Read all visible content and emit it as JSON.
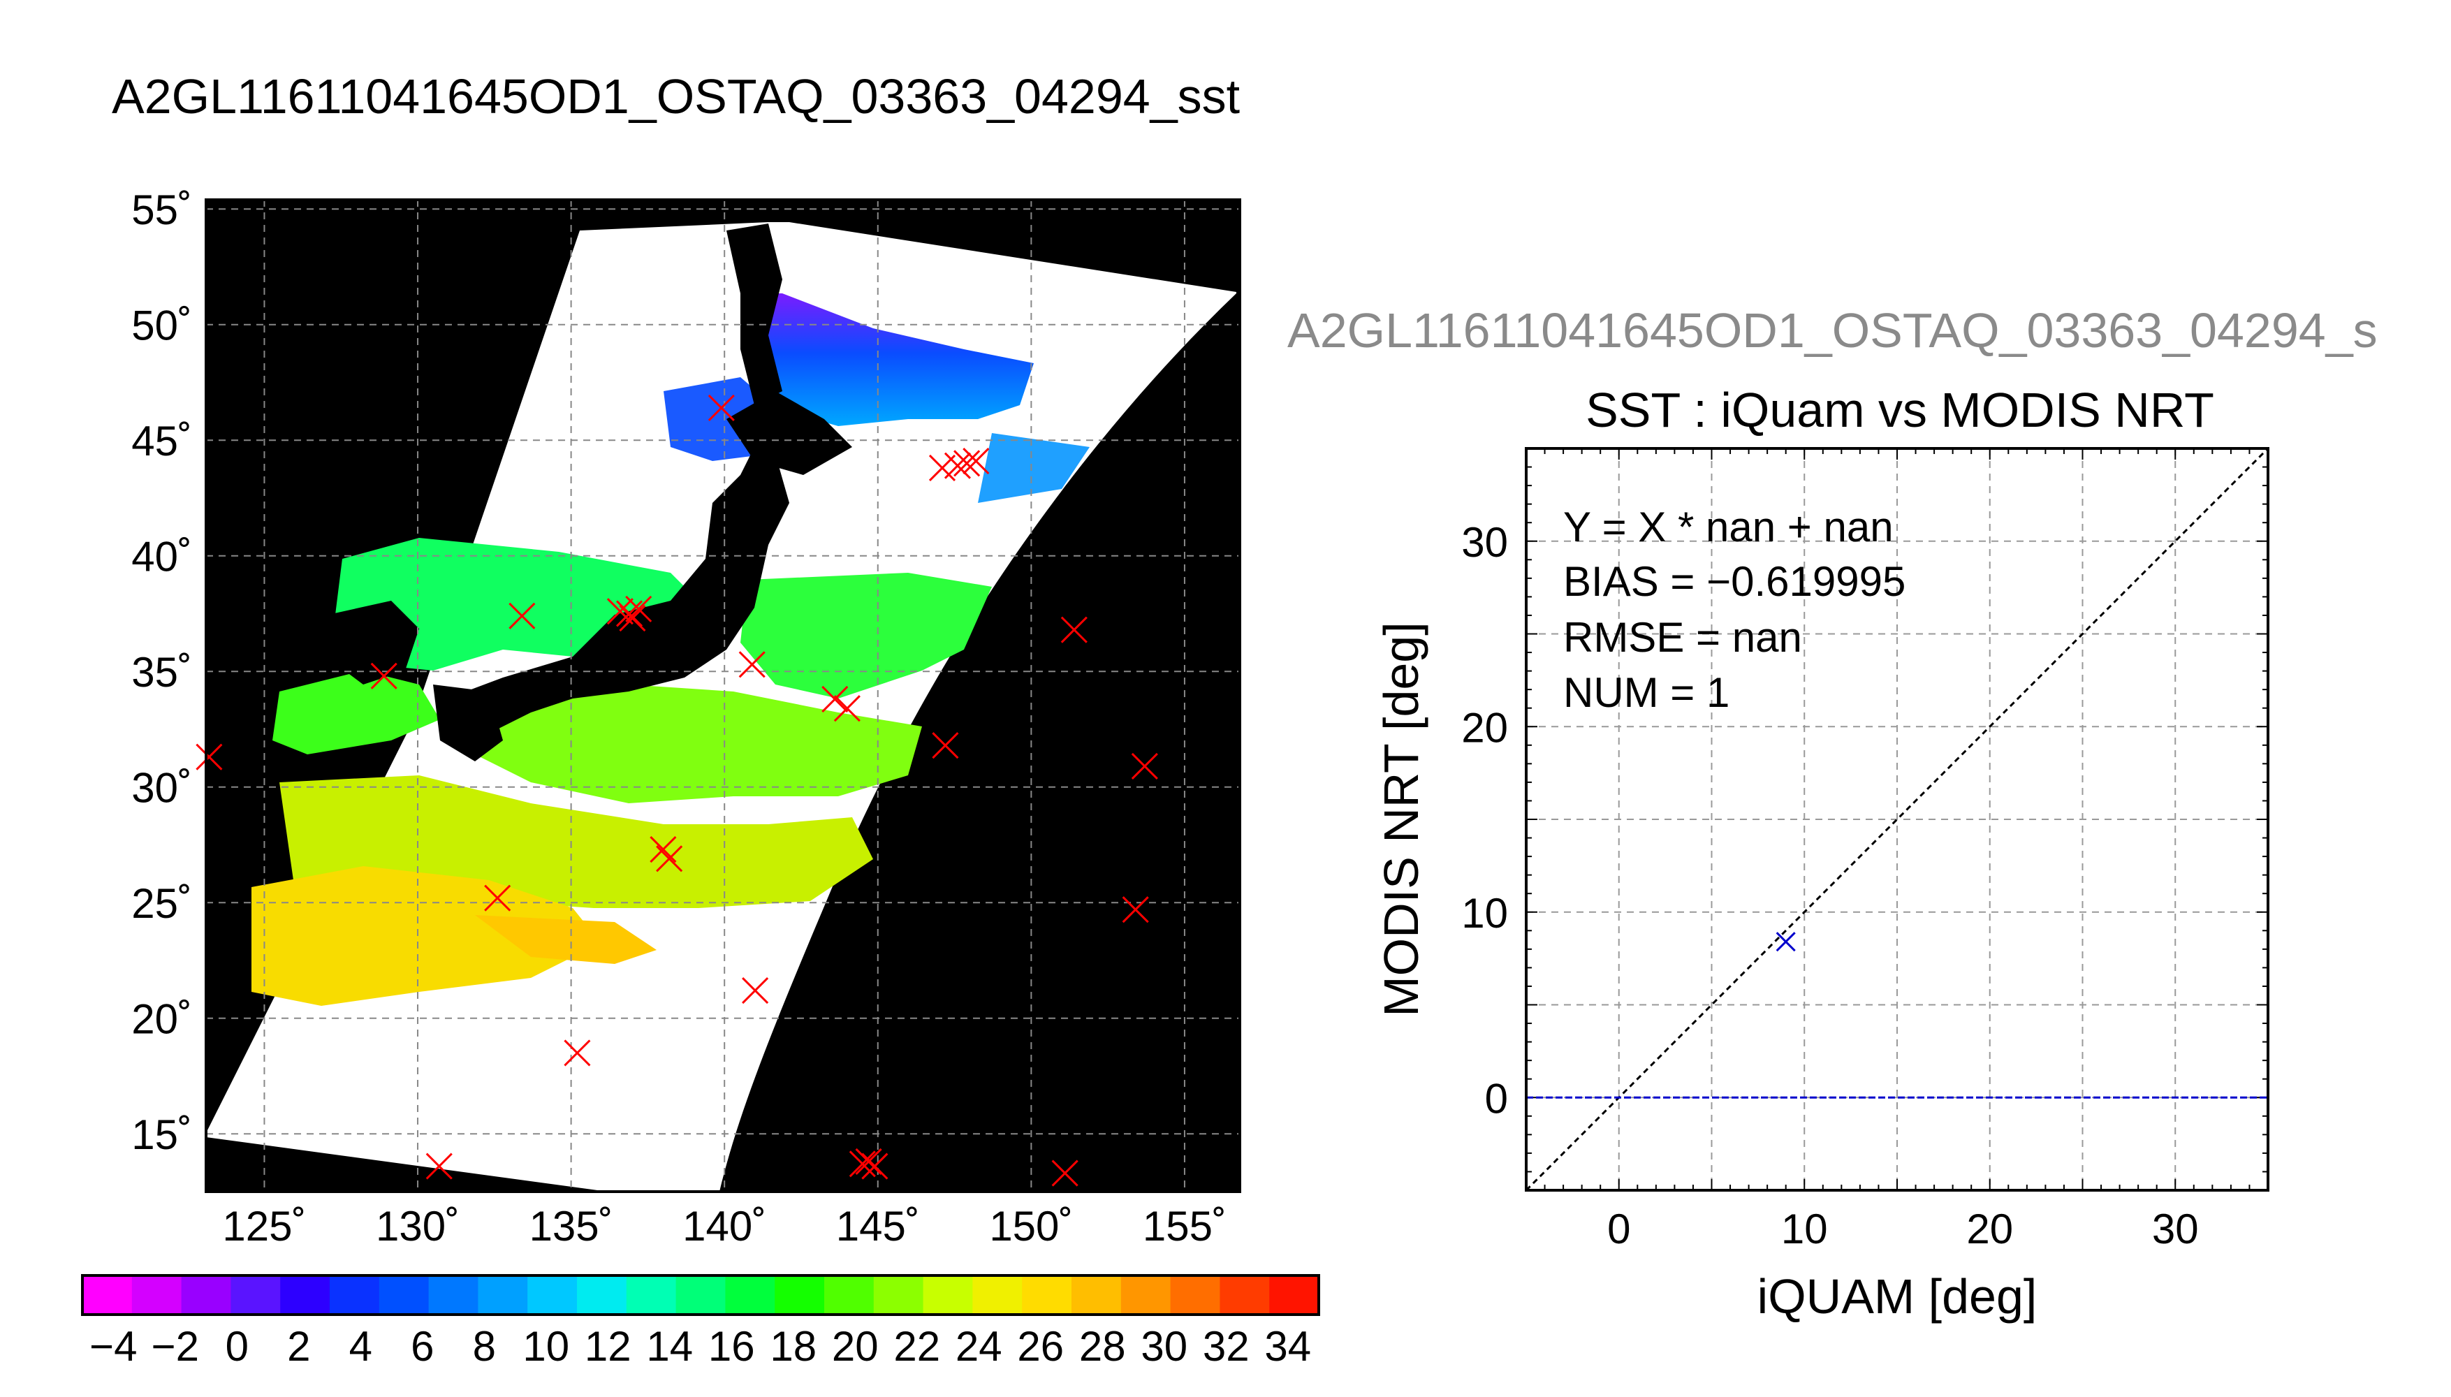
{
  "map": {
    "title": "A2GL11611041645OD1_OSTAQ_03363_04294_sst",
    "lon_ticks": [
      "125˚",
      "130˚",
      "135˚",
      "140˚",
      "145˚",
      "150˚",
      "155˚"
    ],
    "lat_ticks": [
      "55˚",
      "50˚",
      "45˚",
      "40˚",
      "35˚",
      "30˚",
      "25˚",
      "20˚",
      "15˚"
    ],
    "lon_values": [
      125,
      130,
      135,
      140,
      145,
      150,
      155
    ],
    "lat_values": [
      55,
      50,
      45,
      40,
      35,
      30,
      25,
      20,
      15
    ],
    "lon_range": [
      123.1,
      156.8
    ],
    "lat_range": [
      12.5,
      55.4
    ],
    "colors": {
      "land": "#000000",
      "no_data": "#ffffff",
      "marker": "#ff0000",
      "grid": "#888888"
    }
  },
  "colorbar": {
    "labels": [
      "−4",
      "−2",
      "0",
      "2",
      "4",
      "6",
      "8",
      "10",
      "12",
      "14",
      "16",
      "18",
      "20",
      "22",
      "24",
      "26",
      "28",
      "30",
      "32",
      "34"
    ],
    "colors": [
      "#ff00ff",
      "#d400ff",
      "#9900ff",
      "#5a14ff",
      "#2d00ff",
      "#0a32ff",
      "#0050ff",
      "#0078ff",
      "#00a0ff",
      "#00c8ff",
      "#00ebf0",
      "#00ffb4",
      "#00ff78",
      "#00ff3c",
      "#14ff00",
      "#50ff00",
      "#8cff00",
      "#c8ff00",
      "#f0f000",
      "#ffdc00",
      "#ffbe00",
      "#ff9600",
      "#ff6e00",
      "#ff3c00",
      "#ff1400"
    ]
  },
  "scatter": {
    "title_top": "A2GL11611041645OD1_OSTAQ_03363_04294_s",
    "title": "SST : iQuam vs MODIS NRT",
    "xlabel": "iQUAM [deg]",
    "ylabel": "MODIS NRT [deg]",
    "stats": [
      "Y = X * nan + nan",
      "BIAS = −0.619995",
      "RMSE = nan",
      "NUM = 1"
    ]
  },
  "chart_data": {
    "type": "scatter",
    "title": "SST : iQuam vs MODIS NRT",
    "xlabel": "iQUAM [deg]",
    "ylabel": "MODIS NRT [deg]",
    "xlim": [
      -5,
      35
    ],
    "ylim": [
      -5,
      35
    ],
    "x_ticks": [
      0,
      10,
      20,
      30
    ],
    "y_ticks": [
      0,
      10,
      20,
      30
    ],
    "grid": true,
    "series": [
      {
        "x": [
          9.0
        ],
        "y": [
          8.4
        ]
      }
    ],
    "reference_lines": [
      {
        "type": "identity",
        "slope": 1,
        "intercept": 0
      },
      {
        "type": "horizontal",
        "y": 0
      }
    ],
    "colors": {
      "points": "#0000cc",
      "zero_line": "#0000cc",
      "identity_line": "#000000"
    }
  },
  "markers": [
    {
      "lon": 139.9,
      "lat": 46.4
    },
    {
      "lon": 147.1,
      "lat": 43.8
    },
    {
      "lon": 147.6,
      "lat": 43.9
    },
    {
      "lon": 147.9,
      "lat": 44.0
    },
    {
      "lon": 148.2,
      "lat": 44.1
    },
    {
      "lon": 133.4,
      "lat": 37.4
    },
    {
      "lon": 136.6,
      "lat": 37.6
    },
    {
      "lon": 136.9,
      "lat": 37.5
    },
    {
      "lon": 137.2,
      "lat": 37.7
    },
    {
      "lon": 137.0,
      "lat": 37.3
    },
    {
      "lon": 140.9,
      "lat": 35.3
    },
    {
      "lon": 143.6,
      "lat": 33.8
    },
    {
      "lon": 144.0,
      "lat": 33.4
    },
    {
      "lon": 151.4,
      "lat": 36.8
    },
    {
      "lon": 128.9,
      "lat": 34.8
    },
    {
      "lon": 123.2,
      "lat": 31.3
    },
    {
      "lon": 147.2,
      "lat": 31.8
    },
    {
      "lon": 153.7,
      "lat": 30.9
    },
    {
      "lon": 138.0,
      "lat": 27.3
    },
    {
      "lon": 138.2,
      "lat": 26.9
    },
    {
      "lon": 132.6,
      "lat": 25.2
    },
    {
      "lon": 153.4,
      "lat": 24.7
    },
    {
      "lon": 141.0,
      "lat": 21.2
    },
    {
      "lon": 135.2,
      "lat": 18.5
    },
    {
      "lon": 130.7,
      "lat": 13.6
    },
    {
      "lon": 144.5,
      "lat": 13.7
    },
    {
      "lon": 144.9,
      "lat": 13.6
    },
    {
      "lon": 144.7,
      "lat": 13.8
    },
    {
      "lon": 151.1,
      "lat": 13.3
    }
  ]
}
